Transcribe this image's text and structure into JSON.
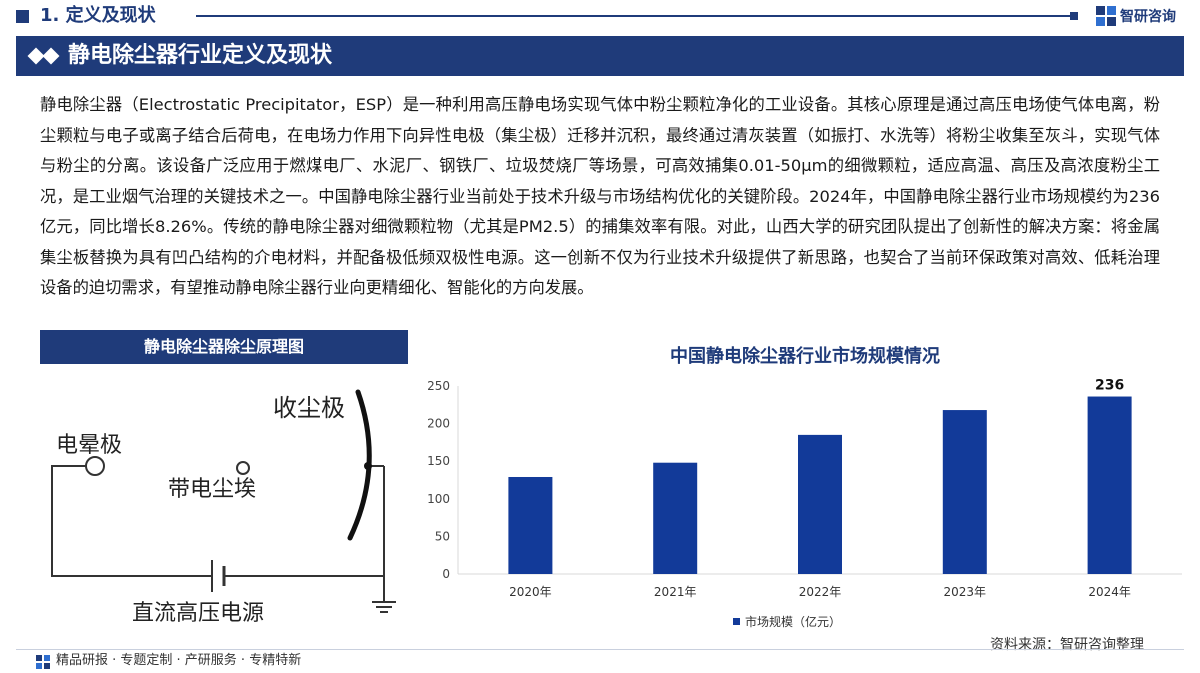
{
  "header": {
    "section": "1. 定义及现状",
    "brand": "智研咨询"
  },
  "banner": {
    "title": "静电除尘器行业定义及现状"
  },
  "body": {
    "paragraph": "静电除尘器（Electrostatic Precipitator，ESP）是一种利用高压静电场实现气体中粉尘颗粒净化的工业设备。其核心原理是通过高压电场使气体电离，粉尘颗粒与电子或离子结合后荷电，在电场力作用下向异性电极（集尘极）迁移并沉积，最终通过清灰装置（如振打、水洗等）将粉尘收集至灰斗，实现气体与粉尘的分离。该设备广泛应用于燃煤电厂、水泥厂、钢铁厂、垃圾焚烧厂等场景，可高效捕集0.01-50μm的细微颗粒，适应高温、高压及高浓度粉尘工况，是工业烟气治理的关键技术之一。中国静电除尘器行业当前处于技术升级与市场结构优化的关键阶段。2024年，中国静电除尘器行业市场规模约为236亿元，同比增长8.26%。传统的静电除尘器对细微颗粒物（尤其是PM2.5）的捕集效率有限。对此，山西大学的研究团队提出了创新性的解决方案：将金属集尘板替换为具有凹凸结构的介电材料，并配备极低频双极性电源。这一创新不仅为行业技术升级提供了新思路，也契合了当前环保政策对高效、低耗治理设备的迫切需求，有望推动静电除尘器行业向更精细化、智能化的方向发展。"
  },
  "diagram": {
    "title": "静电除尘器除尘原理图",
    "labels": {
      "collector": "收尘极",
      "corona": "电晕极",
      "particle": "带电尘埃",
      "power": "直流高压电源"
    }
  },
  "chart_data": {
    "type": "bar",
    "title": "中国静电除尘器行业市场规模情况",
    "categories": [
      "2020年",
      "2021年",
      "2022年",
      "2023年",
      "2024年"
    ],
    "series": [
      {
        "name": "市场规模（亿元）",
        "values": [
          129,
          148,
          185,
          218,
          236
        ]
      }
    ],
    "data_labels": [
      "",
      "",
      "",
      "",
      "236"
    ],
    "yticks": [
      "0",
      "50",
      "100",
      "150",
      "200",
      "250"
    ],
    "ylim": [
      0,
      250
    ],
    "grid": false,
    "legend_position": "bottom",
    "bar_color": "#123a99"
  },
  "source": "资料来源：智研咨询整理",
  "footer": {
    "text": "精品研报 · 专题定制 · 产研服务 · 专精特新"
  }
}
